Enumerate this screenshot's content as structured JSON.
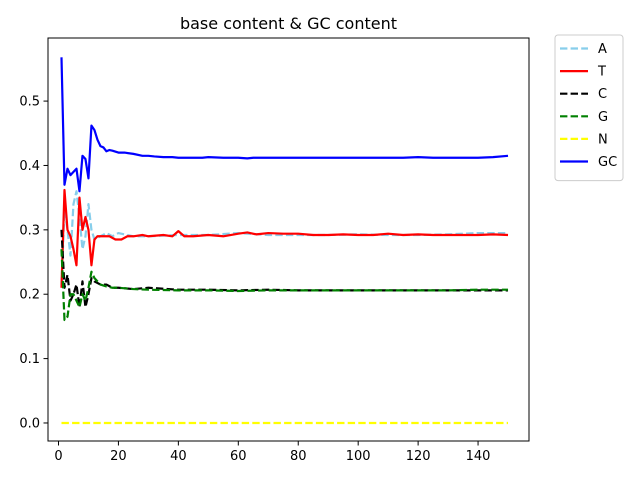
{
  "chart_data": {
    "type": "line",
    "title": "base content & GC content",
    "xlabel": "",
    "ylabel": "",
    "xlim": [
      -3.5,
      157
    ],
    "ylim": [
      -0.028,
      0.598
    ],
    "x_ticks": [
      0,
      20,
      40,
      60,
      80,
      100,
      120,
      140
    ],
    "y_ticks": [
      0.0,
      0.1,
      0.2,
      0.3,
      0.4,
      0.5
    ],
    "x_tick_labels": [
      "0",
      "20",
      "40",
      "60",
      "80",
      "100",
      "120",
      "140"
    ],
    "y_tick_labels": [
      "0.0",
      "0.1",
      "0.2",
      "0.3",
      "0.4",
      "0.5"
    ],
    "grid": false,
    "legend_position": "outside-top-right",
    "series": [
      {
        "name": "A",
        "color": "#87ceeb",
        "dash": "dashed",
        "points": [
          [
            1,
            0.215
          ],
          [
            2,
            0.33
          ],
          [
            3,
            0.3
          ],
          [
            4,
            0.26
          ],
          [
            5,
            0.34
          ],
          [
            6,
            0.36
          ],
          [
            7,
            0.32
          ],
          [
            8,
            0.27
          ],
          [
            9,
            0.29
          ],
          [
            10,
            0.34
          ],
          [
            11,
            0.3
          ],
          [
            12,
            0.285
          ],
          [
            14,
            0.29
          ],
          [
            16,
            0.295
          ],
          [
            18,
            0.29
          ],
          [
            20,
            0.295
          ],
          [
            25,
            0.29
          ],
          [
            30,
            0.29
          ],
          [
            40,
            0.292
          ],
          [
            50,
            0.292
          ],
          [
            60,
            0.295
          ],
          [
            70,
            0.292
          ],
          [
            80,
            0.292
          ],
          [
            90,
            0.292
          ],
          [
            100,
            0.293
          ],
          [
            110,
            0.292
          ],
          [
            120,
            0.292
          ],
          [
            130,
            0.293
          ],
          [
            140,
            0.295
          ],
          [
            150,
            0.295
          ]
        ]
      },
      {
        "name": "T",
        "color": "#ff0000",
        "dash": "solid",
        "points": [
          [
            1,
            0.21
          ],
          [
            2,
            0.362
          ],
          [
            3,
            0.3
          ],
          [
            4,
            0.29
          ],
          [
            5,
            0.27
          ],
          [
            6,
            0.245
          ],
          [
            7,
            0.35
          ],
          [
            8,
            0.3
          ],
          [
            9,
            0.32
          ],
          [
            10,
            0.3
          ],
          [
            11,
            0.245
          ],
          [
            12,
            0.285
          ],
          [
            13,
            0.29
          ],
          [
            15,
            0.29
          ],
          [
            17,
            0.29
          ],
          [
            19,
            0.285
          ],
          [
            21,
            0.285
          ],
          [
            23,
            0.29
          ],
          [
            25,
            0.29
          ],
          [
            28,
            0.292
          ],
          [
            30,
            0.29
          ],
          [
            35,
            0.292
          ],
          [
            38,
            0.29
          ],
          [
            40,
            0.298
          ],
          [
            42,
            0.29
          ],
          [
            45,
            0.29
          ],
          [
            50,
            0.292
          ],
          [
            55,
            0.29
          ],
          [
            60,
            0.294
          ],
          [
            63,
            0.296
          ],
          [
            66,
            0.293
          ],
          [
            70,
            0.295
          ],
          [
            75,
            0.294
          ],
          [
            80,
            0.294
          ],
          [
            85,
            0.292
          ],
          [
            90,
            0.292
          ],
          [
            95,
            0.293
          ],
          [
            100,
            0.292
          ],
          [
            105,
            0.292
          ],
          [
            110,
            0.294
          ],
          [
            115,
            0.292
          ],
          [
            120,
            0.293
          ],
          [
            125,
            0.292
          ],
          [
            130,
            0.292
          ],
          [
            135,
            0.292
          ],
          [
            140,
            0.292
          ],
          [
            145,
            0.293
          ],
          [
            150,
            0.292
          ]
        ]
      },
      {
        "name": "C",
        "color": "#000000",
        "dash": "dashed",
        "points": [
          [
            1,
            0.3
          ],
          [
            2,
            0.21
          ],
          [
            3,
            0.23
          ],
          [
            4,
            0.19
          ],
          [
            5,
            0.2
          ],
          [
            6,
            0.215
          ],
          [
            7,
            0.18
          ],
          [
            8,
            0.22
          ],
          [
            9,
            0.18
          ],
          [
            10,
            0.2
          ],
          [
            11,
            0.225
          ],
          [
            12,
            0.22
          ],
          [
            14,
            0.215
          ],
          [
            16,
            0.215
          ],
          [
            18,
            0.21
          ],
          [
            20,
            0.21
          ],
          [
            25,
            0.208
          ],
          [
            30,
            0.21
          ],
          [
            40,
            0.207
          ],
          [
            50,
            0.207
          ],
          [
            60,
            0.206
          ],
          [
            70,
            0.207
          ],
          [
            80,
            0.206
          ],
          [
            90,
            0.206
          ],
          [
            100,
            0.206
          ],
          [
            110,
            0.206
          ],
          [
            120,
            0.206
          ],
          [
            130,
            0.206
          ],
          [
            140,
            0.206
          ],
          [
            150,
            0.206
          ]
        ]
      },
      {
        "name": "G",
        "color": "#008000",
        "dash": "dashed",
        "points": [
          [
            1,
            0.27
          ],
          [
            2,
            0.16
          ],
          [
            3,
            0.165
          ],
          [
            4,
            0.2
          ],
          [
            5,
            0.2
          ],
          [
            6,
            0.19
          ],
          [
            7,
            0.18
          ],
          [
            8,
            0.2
          ],
          [
            9,
            0.19
          ],
          [
            10,
            0.21
          ],
          [
            11,
            0.235
          ],
          [
            12,
            0.225
          ],
          [
            14,
            0.215
          ],
          [
            16,
            0.212
          ],
          [
            18,
            0.21
          ],
          [
            20,
            0.21
          ],
          [
            25,
            0.208
          ],
          [
            30,
            0.207
          ],
          [
            40,
            0.206
          ],
          [
            50,
            0.206
          ],
          [
            60,
            0.205
          ],
          [
            70,
            0.206
          ],
          [
            80,
            0.206
          ],
          [
            90,
            0.206
          ],
          [
            100,
            0.206
          ],
          [
            110,
            0.206
          ],
          [
            120,
            0.206
          ],
          [
            130,
            0.206
          ],
          [
            140,
            0.207
          ],
          [
            150,
            0.207
          ]
        ]
      },
      {
        "name": "N",
        "color": "#ffff00",
        "dash": "dashed",
        "points": [
          [
            1,
            0.0
          ],
          [
            150,
            0.0
          ]
        ]
      },
      {
        "name": "GC",
        "color": "#0000ff",
        "dash": "solid",
        "points": [
          [
            1,
            0.568
          ],
          [
            2,
            0.37
          ],
          [
            3,
            0.395
          ],
          [
            4,
            0.385
          ],
          [
            5,
            0.39
          ],
          [
            6,
            0.395
          ],
          [
            7,
            0.36
          ],
          [
            8,
            0.415
          ],
          [
            9,
            0.41
          ],
          [
            10,
            0.38
          ],
          [
            11,
            0.462
          ],
          [
            12,
            0.455
          ],
          [
            13,
            0.44
          ],
          [
            14,
            0.43
          ],
          [
            15,
            0.428
          ],
          [
            16,
            0.422
          ],
          [
            17,
            0.424
          ],
          [
            18,
            0.423
          ],
          [
            20,
            0.42
          ],
          [
            22,
            0.42
          ],
          [
            25,
            0.418
          ],
          [
            28,
            0.415
          ],
          [
            30,
            0.415
          ],
          [
            32,
            0.414
          ],
          [
            35,
            0.413
          ],
          [
            38,
            0.413
          ],
          [
            40,
            0.412
          ],
          [
            42,
            0.412
          ],
          [
            45,
            0.412
          ],
          [
            48,
            0.412
          ],
          [
            50,
            0.413
          ],
          [
            55,
            0.412
          ],
          [
            60,
            0.412
          ],
          [
            63,
            0.411
          ],
          [
            65,
            0.412
          ],
          [
            70,
            0.412
          ],
          [
            75,
            0.412
          ],
          [
            80,
            0.412
          ],
          [
            85,
            0.412
          ],
          [
            90,
            0.412
          ],
          [
            95,
            0.412
          ],
          [
            100,
            0.412
          ],
          [
            105,
            0.412
          ],
          [
            110,
            0.412
          ],
          [
            115,
            0.412
          ],
          [
            120,
            0.413
          ],
          [
            125,
            0.412
          ],
          [
            130,
            0.412
          ],
          [
            135,
            0.412
          ],
          [
            140,
            0.412
          ],
          [
            145,
            0.413
          ],
          [
            150,
            0.415
          ]
        ]
      }
    ]
  }
}
